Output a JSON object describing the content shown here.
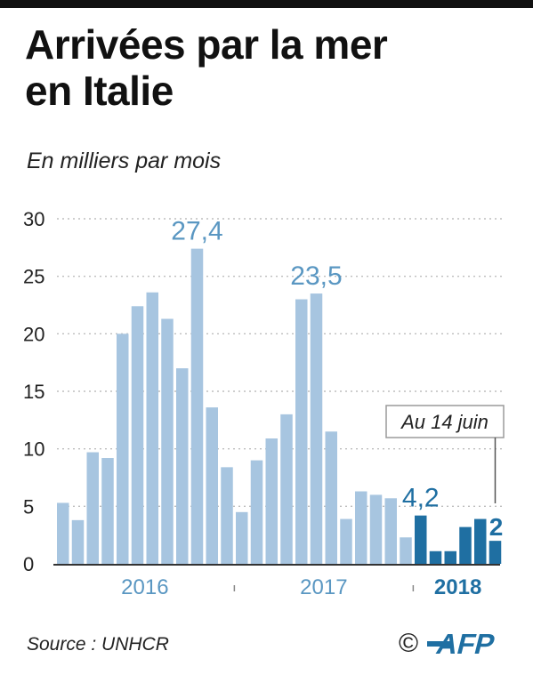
{
  "header": {
    "title_line1": "Arrivées par la mer",
    "title_line2": "en Italie",
    "subtitle": "En milliers par mois"
  },
  "footer": {
    "source": "Source : UNHCR",
    "copyright": "©",
    "logo": "AFP"
  },
  "colors": {
    "bar_past": "#a7c5e0",
    "bar_2018": "#1f6fa2",
    "label_past": "#5a97c2",
    "label_2018": "#1f6fa2",
    "grid": "#bdbdbd",
    "axis": "#333333"
  },
  "chart_data": {
    "type": "bar",
    "title": "Arrivées par la mer en Italie",
    "subtitle": "En milliers par mois",
    "ylim": [
      0,
      30
    ],
    "yticks": [
      0,
      5,
      10,
      15,
      20,
      25,
      30
    ],
    "grid": true,
    "categories": [
      "2016-01",
      "2016-02",
      "2016-03",
      "2016-04",
      "2016-05",
      "2016-06",
      "2016-07",
      "2016-08",
      "2016-09",
      "2016-10",
      "2016-11",
      "2016-12",
      "2017-01",
      "2017-02",
      "2017-03",
      "2017-04",
      "2017-05",
      "2017-06",
      "2017-07",
      "2017-08",
      "2017-09",
      "2017-10",
      "2017-11",
      "2017-12",
      "2018-01",
      "2018-02",
      "2018-03",
      "2018-04",
      "2018-05",
      "2018-06"
    ],
    "values": [
      5.3,
      3.8,
      9.7,
      9.2,
      20.0,
      22.4,
      23.6,
      21.3,
      17.0,
      27.4,
      13.6,
      8.4,
      4.5,
      9.0,
      10.9,
      13.0,
      23.0,
      23.5,
      11.5,
      3.9,
      6.3,
      6.0,
      5.7,
      2.3,
      4.2,
      1.1,
      1.1,
      3.2,
      3.9,
      2.0
    ],
    "years": [
      {
        "label": "2016",
        "start": 0,
        "count": 12
      },
      {
        "label": "2017",
        "start": 12,
        "count": 12
      },
      {
        "label": "2018",
        "start": 24,
        "count": 6
      }
    ],
    "value_labels": [
      {
        "index": 9,
        "text": "27,4"
      },
      {
        "index": 17,
        "text": "23,5"
      },
      {
        "index": 24,
        "text": "4,2"
      },
      {
        "index": 29,
        "text": "2"
      }
    ],
    "annotation": {
      "text": "Au 14 juin",
      "index": 29
    }
  }
}
